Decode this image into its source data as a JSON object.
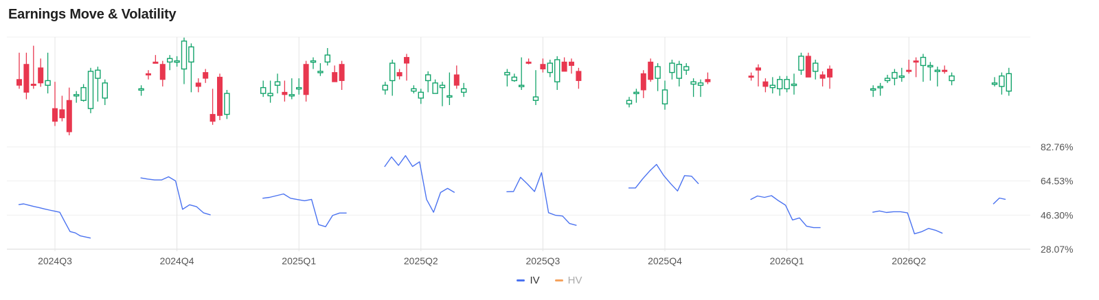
{
  "title": "Earnings Move & Volatility",
  "chart_data": {
    "type": "candlestick+line",
    "title": "Earnings Move & Volatility",
    "x_ticks": [
      "2024Q3",
      "2024Q4",
      "2025Q1",
      "2025Q2",
      "2025Q3",
      "2025Q4",
      "2026Q1",
      "2026Q2"
    ],
    "y_right_ticks": [
      "82.76%",
      "64.53%",
      "46.30%",
      "28.07%"
    ],
    "y_right_range": [
      28.07,
      82.76
    ],
    "grid": true,
    "legend_position": "bottom-center",
    "legend": [
      {
        "name": "IV",
        "color": "#4a72f0",
        "active": true
      },
      {
        "name": "HV",
        "color": "#f5a25d",
        "active": false
      }
    ],
    "colors": {
      "up": "#12a36a",
      "down": "#e8374f",
      "iv_line": "#4a72f0"
    },
    "groups": [
      {
        "quarter": "2024Q3",
        "candles": [
          [
            115,
            110,
            135,
            0
          ],
          [
            128,
            104,
            135,
            -3
          ],
          [
            111,
            110,
            141,
            0
          ],
          [
            125,
            112,
            130,
            -0.3
          ],
          [
            110,
            114,
            135,
            -4
          ],
          [
            90,
            79,
            110,
            -1
          ],
          [
            89,
            82,
            98,
            0
          ],
          [
            97,
            70,
            105,
            0
          ],
          [
            101,
            102,
            100,
            -2
          ],
          [
            97,
            108,
            94,
            5
          ],
          [
            90,
            122,
            89,
            0
          ],
          [
            116,
            123,
            103,
            -4
          ],
          [
            99,
            112,
            100,
            -3
          ]
        ],
        "iv": [
          51.9,
          52.3,
          51.6,
          50.9,
          50.3,
          49.6,
          49.0,
          48.4,
          47.8,
          42.6,
          37.5,
          36.8,
          35.2,
          34.6,
          34.0
        ]
      },
      {
        "quarter": "2024Q4",
        "candles": [
          [
            106,
            107,
            104,
            0
          ],
          [
            120,
            119,
            116,
            2
          ],
          [
            130,
            129,
            133,
            3
          ],
          [
            128,
            115,
            125,
            -3
          ],
          [
            130,
            133,
            130,
            -4
          ],
          [
            131,
            131,
            132,
            -2
          ],
          [
            124,
            148,
            117,
            -3
          ],
          [
            130,
            143,
            115,
            -8
          ],
          [
            112,
            109,
            113,
            -2
          ],
          [
            121,
            116,
            118,
            -1
          ],
          [
            85,
            79,
            104,
            0
          ],
          [
            117,
            84,
            100,
            -1
          ],
          [
            85,
            103,
            96,
            -1
          ]
        ],
        "iv": [
          66.2,
          65.6,
          65.1,
          65.1,
          66.8,
          64.6,
          49.4,
          51.8,
          50.8,
          47.5,
          46.4
        ]
      },
      {
        "quarter": "2025Q1",
        "candles": [
          [
            103,
            108,
            111,
            0
          ],
          [
            101,
            103,
            111,
            -3
          ],
          [
            110,
            113,
            117,
            -4
          ],
          [
            104,
            102,
            111,
            -3
          ],
          [
            101,
            102,
            113,
            0
          ],
          [
            108,
            108,
            113,
            -3
          ],
          [
            128,
            102,
            121,
            -3
          ],
          [
            131,
            131,
            128,
            -1
          ],
          [
            121,
            122,
            126,
            0
          ],
          [
            130,
            136,
            139,
            0
          ],
          [
            121,
            113,
            124,
            5
          ],
          [
            128,
            114,
            127,
            -5
          ]
        ],
        "iv": [
          55.3,
          55.8,
          56.7,
          57.6,
          55.3,
          54.6,
          54.0,
          54.7,
          41.2,
          40.1,
          46.1,
          47.4,
          47.4
        ]
      },
      {
        "quarter": "2025Q2",
        "candles": [
          [
            106,
            110,
            106,
            -1
          ],
          [
            114,
            129,
            109,
            -5
          ],
          [
            121,
            118,
            121,
            0
          ],
          [
            134,
            129,
            116,
            1
          ],
          [
            105,
            107,
            107,
            1
          ],
          [
            99,
            104,
            99,
            -2
          ],
          [
            114,
            119,
            119,
            -7
          ],
          [
            103,
            112,
            103,
            4
          ],
          [
            108,
            110,
            97,
            -2
          ],
          [
            100,
            101,
            118,
            -4
          ],
          [
            119,
            110,
            124,
            0
          ],
          [
            104,
            107,
            109,
            -1
          ]
        ],
        "iv": [
          72.1,
          77.4,
          72.9,
          78.1,
          72.3,
          74.8,
          54.7,
          47.8,
          58.4,
          60.6,
          58.4
        ]
      },
      {
        "quarter": "2025Q3",
        "candles": [
          [
            119,
            121,
            119,
            -7
          ],
          [
            114,
            117,
            115,
            2
          ],
          [
            110,
            110,
            131,
            -1
          ],
          [
            130,
            129,
            129,
            2
          ],
          [
            97,
            100,
            120,
            -1
          ],
          [
            128,
            124,
            130,
            0
          ],
          [
            121,
            129,
            129,
            -1
          ],
          [
            113,
            132,
            131,
            -4
          ],
          [
            130,
            122,
            131,
            4
          ],
          [
            130,
            127,
            126,
            -3
          ],
          [
            122,
            114,
            116,
            -4
          ]
        ],
        "iv": [
          58.8,
          58.9,
          66.5,
          62.9,
          58.9,
          69.0,
          47.6,
          46.2,
          45.8,
          41.8,
          40.8
        ]
      },
      {
        "quarter": "2025Q4",
        "candles": [
          [
            94,
            97,
            96,
            0
          ],
          [
            103,
            104,
            103,
            -5
          ],
          [
            120,
            106,
            114,
            -4
          ],
          [
            130,
            115,
            123,
            1
          ],
          [
            116,
            126,
            110,
            -2
          ],
          [
            94,
            106,
            111,
            -2
          ],
          [
            121,
            129,
            126,
            -3
          ],
          [
            116,
            128,
            112,
            0
          ],
          [
            123,
            126,
            120,
            2
          ],
          [
            111,
            113,
            106,
            -3
          ],
          [
            110,
            112,
            107,
            -4
          ],
          [
            115,
            113,
            118,
            1
          ]
        ],
        "iv": [
          60.8,
          60.8,
          65.6,
          69.8,
          73.4,
          67.6,
          63.2,
          59.2,
          67.4,
          67.1,
          63.0
        ]
      },
      {
        "quarter": "2026Q1",
        "candles": [
          [
            118,
            117,
            117,
            0
          ],
          [
            125,
            123,
            120,
            -8
          ],
          [
            113,
            109,
            112,
            -2
          ],
          [
            108,
            110,
            114,
            -2
          ],
          [
            107,
            115,
            111,
            -3
          ],
          [
            107,
            115,
            110,
            0
          ],
          [
            110,
            111,
            117,
            -5
          ],
          [
            123,
            135,
            135,
            -1
          ],
          [
            135,
            117,
            116,
            5
          ],
          [
            122,
            129,
            124,
            -4
          ],
          [
            119,
            116,
            115,
            -3
          ],
          [
            124,
            117,
            114,
            -4
          ]
        ],
        "iv": [
          54.6,
          56.5,
          55.8,
          56.7,
          54.0,
          51.6,
          43.7,
          44.8,
          40.4,
          39.6,
          39.6
        ]
      },
      {
        "quarter": "2026Q2",
        "candles": [
          [
            106,
            107,
            103,
            0
          ],
          [
            108,
            109,
            106,
            -2
          ],
          [
            114,
            116,
            116,
            1
          ],
          [
            116,
            121,
            121,
            -3
          ],
          [
            118,
            118,
            122,
            -2
          ],
          [
            123,
            122,
            129,
            1
          ],
          [
            131,
            130,
            122,
            -2
          ],
          [
            127,
            134,
            120,
            -4
          ],
          [
            126,
            127,
            120,
            -3
          ],
          [
            122,
            123,
            116,
            -4
          ],
          [
            123,
            122,
            124,
            1
          ],
          [
            114,
            118,
            118,
            -1
          ]
        ],
        "iv": [
          47.8,
          48.5,
          47.7,
          48.1,
          48.1,
          47.5,
          36.3,
          37.4,
          39.2,
          38.2,
          36.6
        ]
      },
      {
        "quarter": "",
        "candles": [
          [
            112,
            112,
            114,
            0
          ],
          [
            109,
            118,
            111,
            -4
          ],
          [
            105,
            120,
            122,
            -1
          ]
        ],
        "iv": [
          52.2,
          55.4,
          54.7
        ]
      }
    ]
  }
}
